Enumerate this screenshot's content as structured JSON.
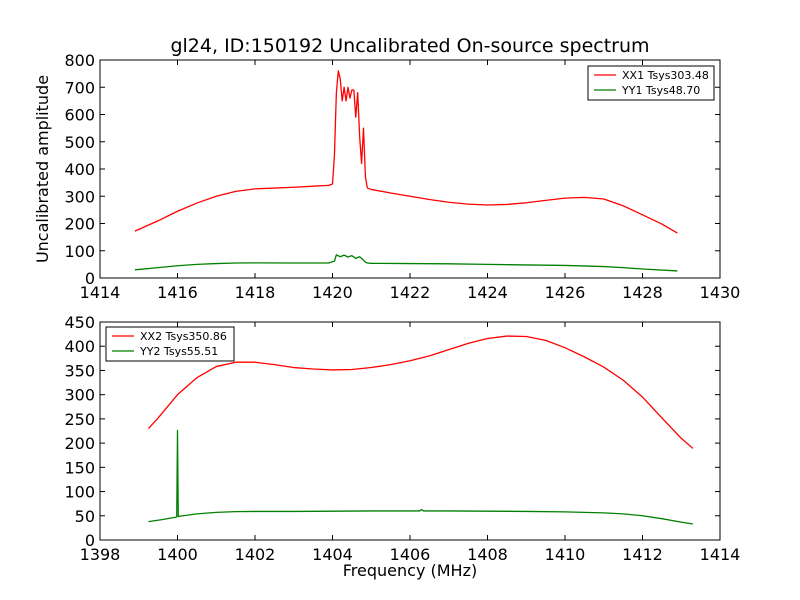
{
  "title": "gl24, ID:150192 Uncalibrated On-source spectrum",
  "colors": {
    "red": "#ff0000",
    "green": "#008000"
  },
  "chart_data": [
    {
      "type": "line",
      "panel": "top",
      "title": "gl24, ID:150192 Uncalibrated On-source spectrum",
      "xlabel": "",
      "ylabel": "Uncalibrated amplitude",
      "xlim": [
        1414,
        1430
      ],
      "ylim": [
        0,
        800
      ],
      "xticks": [
        1414,
        1416,
        1418,
        1420,
        1422,
        1424,
        1426,
        1428,
        1430
      ],
      "yticks": [
        0,
        100,
        200,
        300,
        400,
        500,
        600,
        700,
        800
      ],
      "legend_position": "top-right",
      "series": [
        {
          "name": "XX1 Tsys303.48",
          "color": "#ff0000",
          "points": [
            [
              1414.9,
              172
            ],
            [
              1415.5,
              210
            ],
            [
              1416.0,
              245
            ],
            [
              1416.5,
              275
            ],
            [
              1417.0,
              300
            ],
            [
              1417.5,
              318
            ],
            [
              1418.0,
              327
            ],
            [
              1418.5,
              330
            ],
            [
              1419.0,
              333
            ],
            [
              1419.5,
              337
            ],
            [
              1419.9,
              340
            ],
            [
              1420.0,
              345
            ],
            [
              1420.05,
              450
            ],
            [
              1420.1,
              680
            ],
            [
              1420.15,
              760
            ],
            [
              1420.2,
              730
            ],
            [
              1420.25,
              650
            ],
            [
              1420.3,
              700
            ],
            [
              1420.35,
              650
            ],
            [
              1420.4,
              700
            ],
            [
              1420.45,
              660
            ],
            [
              1420.5,
              690
            ],
            [
              1420.55,
              690
            ],
            [
              1420.6,
              590
            ],
            [
              1420.65,
              680
            ],
            [
              1420.7,
              520
            ],
            [
              1420.75,
              420
            ],
            [
              1420.8,
              550
            ],
            [
              1420.85,
              370
            ],
            [
              1420.9,
              330
            ],
            [
              1421.0,
              325
            ],
            [
              1421.5,
              312
            ],
            [
              1422.0,
              300
            ],
            [
              1422.5,
              288
            ],
            [
              1423.0,
              278
            ],
            [
              1423.5,
              271
            ],
            [
              1424.0,
              268
            ],
            [
              1424.5,
              270
            ],
            [
              1425.0,
              276
            ],
            [
              1425.5,
              285
            ],
            [
              1426.0,
              293
            ],
            [
              1426.5,
              296
            ],
            [
              1427.0,
              290
            ],
            [
              1427.5,
              265
            ],
            [
              1428.0,
              232
            ],
            [
              1428.5,
              198
            ],
            [
              1428.9,
              165
            ]
          ]
        },
        {
          "name": "YY1 Tsys48.70",
          "color": "#008000",
          "points": [
            [
              1414.9,
              30
            ],
            [
              1415.5,
              38
            ],
            [
              1416.0,
              45
            ],
            [
              1416.5,
              50
            ],
            [
              1417.0,
              53
            ],
            [
              1417.5,
              55
            ],
            [
              1418.0,
              55.5
            ],
            [
              1419.0,
              55
            ],
            [
              1419.9,
              55
            ],
            [
              1420.05,
              62
            ],
            [
              1420.1,
              85
            ],
            [
              1420.2,
              78
            ],
            [
              1420.3,
              84
            ],
            [
              1420.4,
              77
            ],
            [
              1420.5,
              82
            ],
            [
              1420.6,
              72
            ],
            [
              1420.7,
              78
            ],
            [
              1420.8,
              66
            ],
            [
              1420.85,
              58
            ],
            [
              1420.9,
              55
            ],
            [
              1421.0,
              54
            ],
            [
              1422.0,
              53
            ],
            [
              1423.0,
              52
            ],
            [
              1424.0,
              50
            ],
            [
              1425.0,
              48
            ],
            [
              1426.0,
              46
            ],
            [
              1427.0,
              42
            ],
            [
              1427.5,
              38
            ],
            [
              1428.0,
              33
            ],
            [
              1428.9,
              26
            ]
          ]
        }
      ]
    },
    {
      "type": "line",
      "panel": "bottom",
      "title": "",
      "xlabel": "Frequency (MHz)",
      "ylabel": "",
      "xlim": [
        1398,
        1414
      ],
      "ylim": [
        0,
        450
      ],
      "xticks": [
        1398,
        1400,
        1402,
        1404,
        1406,
        1408,
        1410,
        1412,
        1414
      ],
      "yticks": [
        0,
        50,
        100,
        150,
        200,
        250,
        300,
        350,
        400,
        450
      ],
      "legend_position": "top-left",
      "series": [
        {
          "name": "XX2 Tsys350.86",
          "color": "#ff0000",
          "points": [
            [
              1399.25,
              230
            ],
            [
              1399.5,
              252
            ],
            [
              1400.0,
              300
            ],
            [
              1400.5,
              335
            ],
            [
              1401.0,
              358
            ],
            [
              1401.5,
              367
            ],
            [
              1402.0,
              367
            ],
            [
              1402.5,
              362
            ],
            [
              1403.0,
              356
            ],
            [
              1403.5,
              353
            ],
            [
              1404.0,
              351
            ],
            [
              1404.5,
              352
            ],
            [
              1405.0,
              356
            ],
            [
              1405.5,
              362
            ],
            [
              1406.0,
              370
            ],
            [
              1406.5,
              380
            ],
            [
              1407.0,
              393
            ],
            [
              1407.5,
              406
            ],
            [
              1408.0,
              416
            ],
            [
              1408.5,
              421
            ],
            [
              1409.0,
              420
            ],
            [
              1409.5,
              412
            ],
            [
              1410.0,
              397
            ],
            [
              1410.5,
              378
            ],
            [
              1411.0,
              357
            ],
            [
              1411.5,
              330
            ],
            [
              1412.0,
              295
            ],
            [
              1412.5,
              252
            ],
            [
              1413.0,
              210
            ],
            [
              1413.3,
              189
            ]
          ]
        },
        {
          "name": "YY2 Tsys55.51",
          "color": "#008000",
          "points": [
            [
              1399.25,
              38
            ],
            [
              1399.6,
              42
            ],
            [
              1399.95,
              47
            ],
            [
              1399.98,
              48
            ],
            [
              1400.0,
              226
            ],
            [
              1400.02,
              48
            ],
            [
              1400.05,
              49
            ],
            [
              1400.5,
              54
            ],
            [
              1401.0,
              57
            ],
            [
              1401.5,
              58.5
            ],
            [
              1402.0,
              59
            ],
            [
              1403.0,
              59
            ],
            [
              1404.0,
              59.5
            ],
            [
              1405.0,
              60
            ],
            [
              1406.0,
              60
            ],
            [
              1406.25,
              60
            ],
            [
              1406.3,
              63
            ],
            [
              1406.35,
              60
            ],
            [
              1407.0,
              60
            ],
            [
              1408.0,
              59.5
            ],
            [
              1409.0,
              59
            ],
            [
              1410.0,
              58
            ],
            [
              1411.0,
              56
            ],
            [
              1411.5,
              54
            ],
            [
              1412.0,
              50
            ],
            [
              1412.5,
              44
            ],
            [
              1413.0,
              37
            ],
            [
              1413.3,
              33
            ]
          ]
        }
      ]
    }
  ]
}
